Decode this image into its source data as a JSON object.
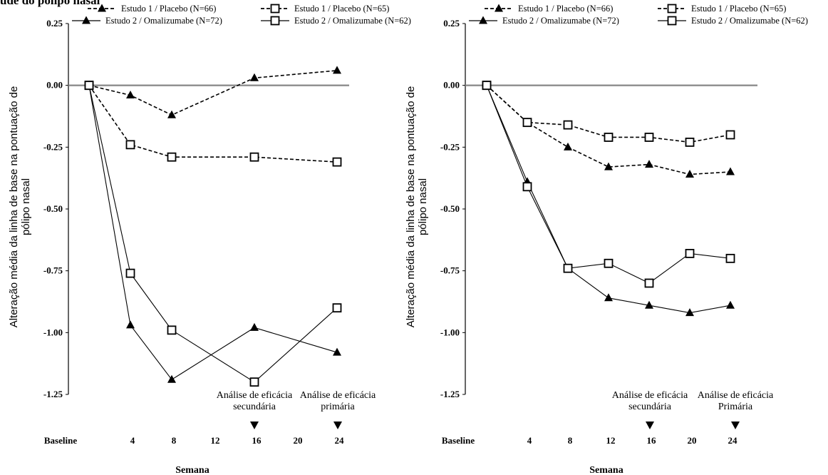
{
  "top_text": "ude do pólipo nasal",
  "chart_data": [
    {
      "type": "line",
      "title": "",
      "xlabel": "Semana",
      "ylabel_lines": [
        "Alteração média da linha de base na pontuação de",
        "pólipo nasal"
      ],
      "ylim": [
        -1.25,
        0.25
      ],
      "y_ticks": [
        "0.25",
        "0.00",
        "-0.25",
        "-0.50",
        "-0.75",
        "-1.00",
        "-1.25"
      ],
      "x_ticks": [
        {
          "label": "Baseline",
          "x": 0
        },
        {
          "label": "4",
          "x": 4
        },
        {
          "label": "8",
          "x": 8
        },
        {
          "label": "12",
          "x": 12
        },
        {
          "label": "16",
          "x": 16
        },
        {
          "label": "20",
          "x": 20
        },
        {
          "label": "24",
          "x": 24
        }
      ],
      "series": [
        {
          "name": "Estudo 1 / Placebo (N=66)",
          "marker": "triangle",
          "dashed": true,
          "points": [
            [
              0,
              0.0
            ],
            [
              4,
              -0.04
            ],
            [
              8,
              -0.12
            ],
            [
              16,
              0.03
            ],
            [
              24,
              0.06
            ]
          ]
        },
        {
          "name": "Estudo 2 / Omalizumabe (N=72)",
          "marker": "triangle",
          "dashed": false,
          "points": [
            [
              0,
              0.0
            ],
            [
              4,
              -0.97
            ],
            [
              8,
              -1.19
            ],
            [
              16,
              -0.98
            ],
            [
              24,
              -1.08
            ]
          ]
        },
        {
          "name": "Estudo 1 / Placebo (N=65)",
          "marker": "square",
          "dashed": true,
          "points": [
            [
              0,
              0.0
            ],
            [
              4,
              -0.24
            ],
            [
              8,
              -0.29
            ],
            [
              16,
              -0.29
            ],
            [
              24,
              -0.31
            ]
          ]
        },
        {
          "name": "Estudo 2 / Omalizumabe (N=62)",
          "marker": "square",
          "dashed": false,
          "points": [
            [
              0,
              0.0
            ],
            [
              4,
              -0.76
            ],
            [
              8,
              -0.99
            ],
            [
              16,
              -1.2
            ],
            [
              24,
              -0.9
            ]
          ]
        }
      ],
      "annotations": [
        {
          "lines": [
            "Análise de eficácia",
            "secundária"
          ],
          "at_week": 16
        },
        {
          "lines": [
            "Análise de eficácia",
            "primária"
          ],
          "at_week": 24
        }
      ],
      "legend_position": "top",
      "grid": false
    },
    {
      "type": "line",
      "title": "",
      "xlabel": "Semana",
      "ylabel_lines": [
        "Alteração média da linha de base na pontuação de",
        "pólipo nasal"
      ],
      "ylim": [
        -1.25,
        0.25
      ],
      "y_ticks": [
        "0.25",
        "0.00",
        "-0.25",
        "-0.50",
        "-0.75",
        "-1.00",
        "-1.25"
      ],
      "x_ticks": [
        {
          "label": "Baseline",
          "x": 0
        },
        {
          "label": "4",
          "x": 4
        },
        {
          "label": "8",
          "x": 8
        },
        {
          "label": "12",
          "x": 12
        },
        {
          "label": "16",
          "x": 16
        },
        {
          "label": "20",
          "x": 20
        },
        {
          "label": "24",
          "x": 24
        }
      ],
      "series": [
        {
          "name": "Estudo 1 / Placebo (N=66)",
          "marker": "triangle",
          "dashed": true,
          "points": [
            [
              0,
              0.0
            ],
            [
              4,
              -0.15
            ],
            [
              8,
              -0.25
            ],
            [
              12,
              -0.33
            ],
            [
              16,
              -0.32
            ],
            [
              20,
              -0.36
            ],
            [
              24,
              -0.35
            ]
          ]
        },
        {
          "name": "Estudo 2 / Omalizumabe (N=72)",
          "marker": "triangle",
          "dashed": false,
          "points": [
            [
              0,
              0.0
            ],
            [
              4,
              -0.39
            ],
            [
              8,
              -0.74
            ],
            [
              12,
              -0.86
            ],
            [
              16,
              -0.89
            ],
            [
              20,
              -0.92
            ],
            [
              24,
              -0.89
            ]
          ]
        },
        {
          "name": "Estudo 1 / Placebo (N=65)",
          "marker": "square",
          "dashed": true,
          "points": [
            [
              0,
              0.0
            ],
            [
              4,
              -0.15
            ],
            [
              8,
              -0.16
            ],
            [
              12,
              -0.21
            ],
            [
              16,
              -0.21
            ],
            [
              20,
              -0.23
            ],
            [
              24,
              -0.2
            ]
          ]
        },
        {
          "name": "Estudo 2 / Omalizumabe (N=62)",
          "marker": "square",
          "dashed": false,
          "points": [
            [
              0,
              0.0
            ],
            [
              4,
              -0.41
            ],
            [
              8,
              -0.74
            ],
            [
              12,
              -0.72
            ],
            [
              16,
              -0.8
            ],
            [
              20,
              -0.68
            ],
            [
              24,
              -0.7
            ]
          ]
        }
      ],
      "annotations": [
        {
          "lines": [
            "Análise de eficácia",
            "secundária"
          ],
          "at_week": 16
        },
        {
          "lines": [
            "Análise de eficácia",
            "Primária"
          ],
          "at_week": 24
        }
      ],
      "legend_position": "top",
      "grid": false
    }
  ]
}
